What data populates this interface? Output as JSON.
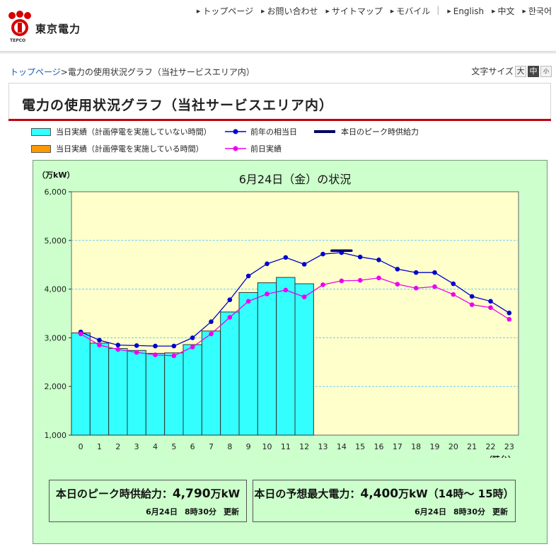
{
  "header": {
    "logo_text": "東京電力",
    "logo_small": "TEPCO",
    "nav": [
      "トップページ",
      "お問い合わせ",
      "サイトマップ",
      "モバイル",
      "English",
      "中文",
      "한국어"
    ]
  },
  "breadcrumb": {
    "home": "トップページ",
    "separator": ">",
    "current": "電力の使用状況グラフ（当社サービスエリア内）"
  },
  "font_size": {
    "label": "文字サイズ",
    "large": "大",
    "medium": "中",
    "small": "小"
  },
  "page_title": "電力の使用状況グラフ（当社サービスエリア内）",
  "legend": {
    "actual_no_outage": "当日実績（計画停電を実施していない時間）",
    "actual_outage": "当日実績（計画停電を実施している時間）",
    "last_year": "前年の相当日",
    "prev_day": "前日実績",
    "peak_supply": "本日のピーク時供給力"
  },
  "colors": {
    "bar": "#33ffff",
    "bar_outage": "#ff9900",
    "last_year": "#0000cc",
    "prev_day": "#ee00ee",
    "peak": "#000066",
    "plot_bg": "#ffffcc",
    "panel_bg": "#ccffcc"
  },
  "chart_data": {
    "type": "bar",
    "title": "6月24日（金）の状況",
    "ylabel": "（万kW）",
    "xlabel": "（時台）",
    "ylim": [
      1000,
      6000
    ],
    "yticks": [
      "1,000",
      "2,000",
      "3,000",
      "4,000",
      "5,000",
      "6,000"
    ],
    "categories": [
      "0",
      "1",
      "2",
      "3",
      "4",
      "5",
      "6",
      "7",
      "8",
      "9",
      "10",
      "11",
      "12",
      "13",
      "14",
      "15",
      "16",
      "17",
      "18",
      "19",
      "20",
      "21",
      "22",
      "23"
    ],
    "bar_values": [
      3100,
      2890,
      2780,
      2740,
      2680,
      2690,
      2860,
      3140,
      3530,
      3930,
      4130,
      4240,
      4110
    ],
    "series": [
      {
        "name": "前年の相当日",
        "values": [
          3120,
          2950,
          2850,
          2840,
          2830,
          2830,
          3000,
          3330,
          3780,
          4270,
          4520,
          4650,
          4510,
          4720,
          4750,
          4660,
          4600,
          4410,
          4340,
          4340,
          4110,
          3850,
          3750,
          3510
        ]
      },
      {
        "name": "前日実績",
        "values": [
          3080,
          2850,
          2760,
          2700,
          2650,
          2630,
          2810,
          3080,
          3420,
          3750,
          3900,
          3980,
          3840,
          4090,
          4170,
          4180,
          4230,
          4100,
          4020,
          4050,
          3890,
          3680,
          3620,
          3380
        ]
      }
    ],
    "peak_supply": {
      "value": 4790,
      "hour": 14
    },
    "grid": true
  },
  "info_peak": {
    "label": "本日のピーク時供給力：",
    "value": "4,790",
    "unit": "万kW",
    "date": "6月24日",
    "time": "8時30分",
    "updated": "更新"
  },
  "info_forecast": {
    "label": "本日の予想最大電力：",
    "value": "4,400",
    "unit": "万kW",
    "range": "（14時～ 15時）",
    "date": "6月24日",
    "time": "8時30分",
    "updated": "更新"
  }
}
